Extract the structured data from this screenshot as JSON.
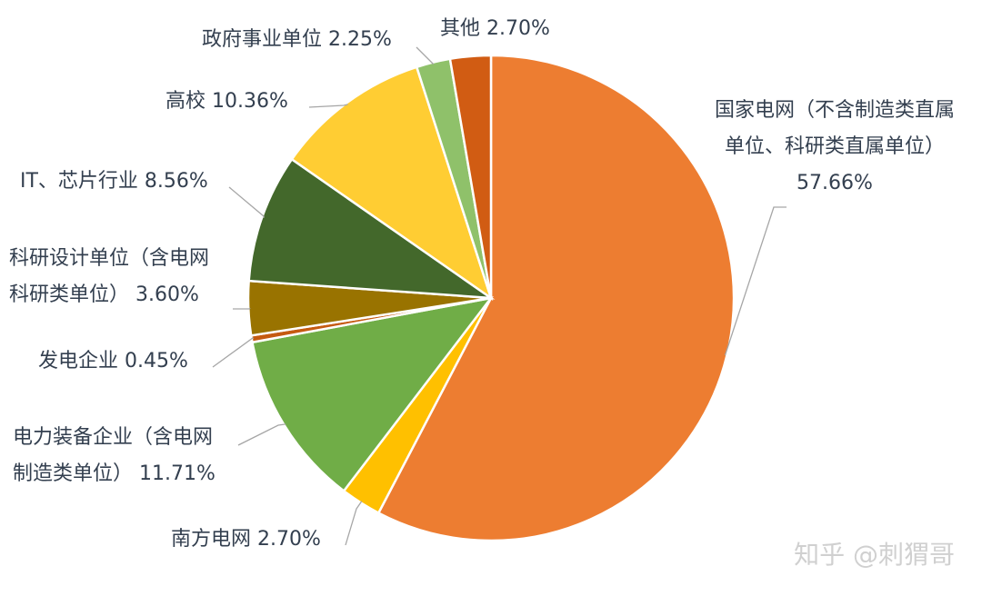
{
  "chart_data": {
    "type": "pie",
    "title": "",
    "start_angle_deg": 0,
    "direction": "clockwise",
    "slices": [
      {
        "label_lines": [
          "国家电网（不含制造类直属",
          "单位、科研类直属单位）",
          "57.66%"
        ],
        "value": 57.66,
        "color": "#ed7d31"
      },
      {
        "label_lines": [
          "南方电网  2.70%"
        ],
        "value": 2.7,
        "color": "#ffc000"
      },
      {
        "label_lines": [
          "电力装备企业（含电网",
          "制造类单位）  11.71%"
        ],
        "value": 11.71,
        "color": "#70ad47"
      },
      {
        "label_lines": [
          "发电企业  0.45%"
        ],
        "value": 0.45,
        "color": "#c55a11"
      },
      {
        "label_lines": [
          "科研设计单位（含电网",
          "科研类单位）  3.60%"
        ],
        "value": 3.6,
        "color": "#997300"
      },
      {
        "label_lines": [
          "IT、芯片行业  8.56%"
        ],
        "value": 8.56,
        "color": "#43682b"
      },
      {
        "label_lines": [
          "高校  10.36%"
        ],
        "value": 10.36,
        "color": "#ffcd33"
      },
      {
        "label_lines": [
          "政府事业单位  2.25%"
        ],
        "value": 2.25,
        "color": "#8fc16a"
      },
      {
        "label_lines": [
          "其他  2.70%"
        ],
        "value": 2.7,
        "color": "#d15c13"
      }
    ]
  },
  "watermark": "知乎 @刺猬哥"
}
